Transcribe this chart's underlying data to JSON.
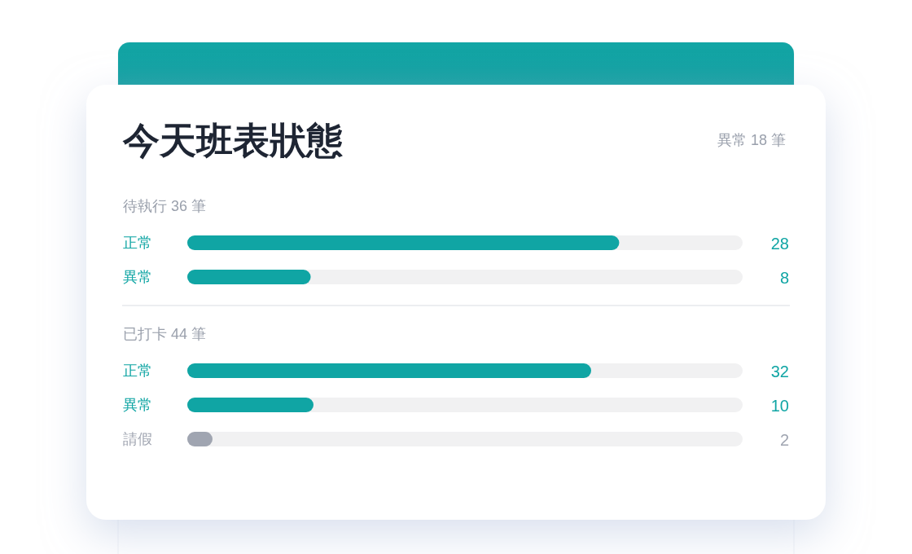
{
  "chart_data": [
    {
      "type": "bar",
      "orientation": "horizontal",
      "title": "今天班表狀態",
      "annotations": [
        "異常 18 筆"
      ],
      "subtitle": "待執行 36 筆",
      "categories": [
        "正常",
        "異常"
      ],
      "values": [
        28,
        8
      ],
      "colors": [
        "#10a5a4",
        "#10a5a4"
      ],
      "xlim": [
        0,
        36
      ],
      "data_labels": true,
      "tick_labels": "y"
    },
    {
      "type": "bar",
      "orientation": "horizontal",
      "subtitle": "已打卡 44 筆",
      "categories": [
        "正常",
        "異常",
        "請假"
      ],
      "values": [
        32,
        10,
        2
      ],
      "colors": [
        "#10a5a4",
        "#10a5a4",
        "#a0a5b1"
      ],
      "xlim": [
        0,
        44
      ],
      "data_labels": true,
      "tick_labels": "y"
    }
  ]
}
